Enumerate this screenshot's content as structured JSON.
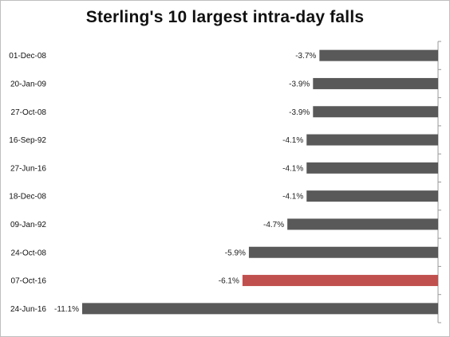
{
  "chart_data": {
    "type": "bar",
    "orientation": "horizontal",
    "title": "Sterling's 10 largest intra-day falls",
    "categories": [
      "01-Dec-08",
      "20-Jan-09",
      "27-Oct-08",
      "16-Sep-92",
      "27-Jun-16",
      "18-Dec-08",
      "09-Jan-92",
      "24-Oct-08",
      "07-Oct-16",
      "24-Jun-16"
    ],
    "values": [
      -3.7,
      -3.9,
      -3.9,
      -4.1,
      -4.1,
      -4.1,
      -4.7,
      -5.9,
      -6.1,
      -11.1
    ],
    "value_labels": [
      "-3.7%",
      "-3.9%",
      "-3.9%",
      "-4.1%",
      "-4.1%",
      "-4.1%",
      "-4.7%",
      "-5.9%",
      "-6.1%",
      "-11.1%"
    ],
    "highlight_index": 8,
    "colors": {
      "bar": "#595959",
      "highlight": "#c0504d",
      "axis": "#999999"
    },
    "xlim": [
      -12,
      0
    ],
    "grid": false,
    "legend": "none"
  }
}
